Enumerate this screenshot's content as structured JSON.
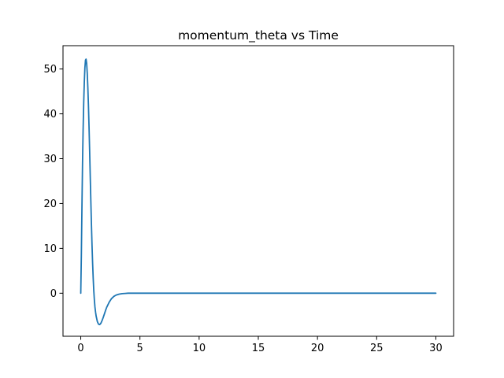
{
  "chart_data": {
    "type": "line",
    "title": "momentum_theta vs Time",
    "xlabel": "",
    "ylabel": "",
    "xlim": [
      -1.5,
      31.5
    ],
    "ylim": [
      -9.6,
      55.2
    ],
    "xticks": [
      0,
      5,
      10,
      15,
      20,
      25,
      30
    ],
    "yticks": [
      0,
      10,
      20,
      30,
      40,
      50
    ],
    "grid": false,
    "series": [
      {
        "color": "#1f77b4",
        "x": [
          0,
          0.05,
          0.1,
          0.15,
          0.2,
          0.25,
          0.3,
          0.35,
          0.4,
          0.45,
          0.5,
          0.55,
          0.6,
          0.65,
          0.7,
          0.75,
          0.8,
          0.85,
          0.9,
          0.95,
          1.0,
          1.05,
          1.1,
          1.15,
          1.2,
          1.25,
          1.3,
          1.4,
          1.5,
          1.6,
          1.7,
          1.8,
          1.9,
          2.0,
          2.1,
          2.2,
          2.4,
          2.6,
          2.8,
          3.0,
          3.25,
          3.5,
          3.75,
          4.0,
          4.5,
          5.0,
          5.5,
          6.0,
          7.0,
          8.0,
          10,
          12,
          15,
          20,
          25,
          30
        ],
        "y": [
          0,
          8.5,
          19,
          29,
          36.5,
          42.5,
          47,
          50.3,
          52,
          52.2,
          51.2,
          49,
          45.8,
          41.8,
          37,
          31.8,
          26.2,
          20.8,
          15.6,
          10.9,
          6.8,
          3.4,
          0.6,
          -1.5,
          -3.1,
          -4.2,
          -5.1,
          -6.3,
          -6.9,
          -7.0,
          -6.7,
          -6.1,
          -5.4,
          -4.6,
          -3.8,
          -3.1,
          -2.0,
          -1.2,
          -0.7,
          -0.4,
          -0.2,
          -0.1,
          -0.05,
          0,
          0,
          0,
          0,
          0,
          0,
          0,
          0,
          0,
          0,
          0,
          0,
          0
        ]
      }
    ]
  }
}
